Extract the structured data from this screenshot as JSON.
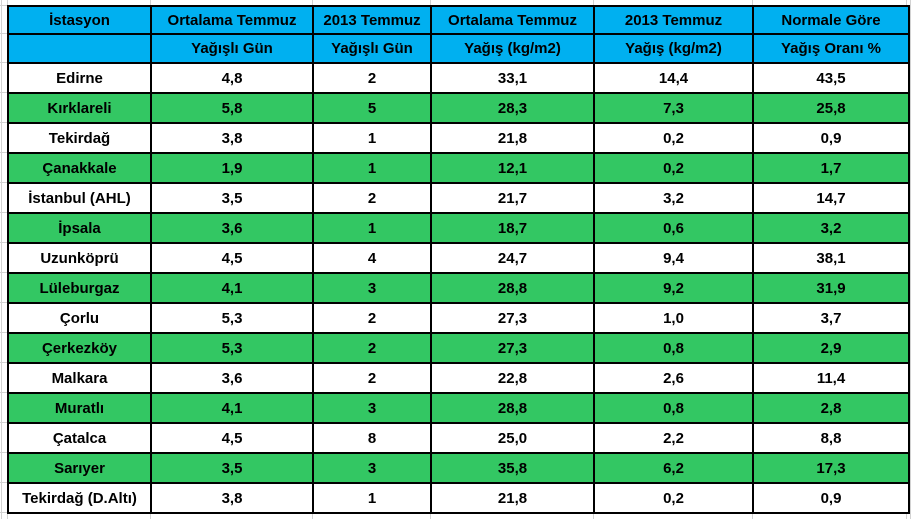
{
  "colors": {
    "header_bg": "#00B0F0",
    "row_green_bg": "#33C763",
    "row_white_bg": "#FFFFFF",
    "grid_border": "#000000",
    "sheet_gridline": "#D2D2D2",
    "text": "#000000"
  },
  "table": {
    "headers": [
      {
        "line1": "İstasyon",
        "line2": ""
      },
      {
        "line1": "Ortalama Temmuz",
        "line2": "Yağışlı Gün"
      },
      {
        "line1": "2013 Temmuz",
        "line2": "Yağışlı Gün"
      },
      {
        "line1": "Ortalama Temmuz",
        "line2": "Yağış (kg/m2)"
      },
      {
        "line1": "2013 Temmuz",
        "line2": "Yağış (kg/m2)"
      },
      {
        "line1": "Normale Göre",
        "line2": "Yağış Oranı %"
      }
    ],
    "rows": [
      {
        "station": "Edirne",
        "values": [
          "4,8",
          "2",
          "33,1",
          "14,4",
          "43,5"
        ]
      },
      {
        "station": "Kırklareli",
        "values": [
          "5,8",
          "5",
          "28,3",
          "7,3",
          "25,8"
        ]
      },
      {
        "station": "Tekirdağ",
        "values": [
          "3,8",
          "1",
          "21,8",
          "0,2",
          "0,9"
        ]
      },
      {
        "station": "Çanakkale",
        "values": [
          "1,9",
          "1",
          "12,1",
          "0,2",
          "1,7"
        ]
      },
      {
        "station": "İstanbul (AHL)",
        "values": [
          "3,5",
          "2",
          "21,7",
          "3,2",
          "14,7"
        ]
      },
      {
        "station": "İpsala",
        "values": [
          "3,6",
          "1",
          "18,7",
          "0,6",
          "3,2"
        ]
      },
      {
        "station": "Uzunköprü",
        "values": [
          "4,5",
          "4",
          "24,7",
          "9,4",
          "38,1"
        ]
      },
      {
        "station": "Lüleburgaz",
        "values": [
          "4,1",
          "3",
          "28,8",
          "9,2",
          "31,9"
        ]
      },
      {
        "station": "Çorlu",
        "values": [
          "5,3",
          "2",
          "27,3",
          "1,0",
          "3,7"
        ]
      },
      {
        "station": "Çerkezköy",
        "values": [
          "5,3",
          "2",
          "27,3",
          "0,8",
          "2,9"
        ]
      },
      {
        "station": "Malkara",
        "values": [
          "3,6",
          "2",
          "22,8",
          "2,6",
          "11,4"
        ]
      },
      {
        "station": "Muratlı",
        "values": [
          "4,1",
          "3",
          "28,8",
          "0,8",
          "2,8"
        ]
      },
      {
        "station": "Çatalca",
        "values": [
          "4,5",
          "8",
          "25,0",
          "2,2",
          "8,8"
        ]
      },
      {
        "station": "Sarıyer",
        "values": [
          "3,5",
          "3",
          "35,8",
          "6,2",
          "17,3"
        ]
      },
      {
        "station": "Tekirdağ (D.Altı)",
        "values": [
          "3,8",
          "1",
          "21,8",
          "0,2",
          "0,9"
        ]
      }
    ]
  },
  "chart_data": {
    "type": "table",
    "columns": [
      "İstasyon",
      "Ortalama Temmuz Yağışlı Gün",
      "2013 Temmuz Yağışlı Gün",
      "Ortalama Temmuz Yağış (kg/m2)",
      "2013 Temmuz Yağış (kg/m2)",
      "Normale Göre Yağış Oranı %"
    ],
    "rows": [
      [
        "Edirne",
        4.8,
        2,
        33.1,
        14.4,
        43.5
      ],
      [
        "Kırklareli",
        5.8,
        5,
        28.3,
        7.3,
        25.8
      ],
      [
        "Tekirdağ",
        3.8,
        1,
        21.8,
        0.2,
        0.9
      ],
      [
        "Çanakkale",
        1.9,
        1,
        12.1,
        0.2,
        1.7
      ],
      [
        "İstanbul (AHL)",
        3.5,
        2,
        21.7,
        3.2,
        14.7
      ],
      [
        "İpsala",
        3.6,
        1,
        18.7,
        0.6,
        3.2
      ],
      [
        "Uzunköprü",
        4.5,
        4,
        24.7,
        9.4,
        38.1
      ],
      [
        "Lüleburgaz",
        4.1,
        3,
        28.8,
        9.2,
        31.9
      ],
      [
        "Çorlu",
        5.3,
        2,
        27.3,
        1.0,
        3.7
      ],
      [
        "Çerkezköy",
        5.3,
        2,
        27.3,
        0.8,
        2.9
      ],
      [
        "Malkara",
        3.6,
        2,
        22.8,
        2.6,
        11.4
      ],
      [
        "Muratlı",
        4.1,
        3,
        28.8,
        0.8,
        2.8
      ],
      [
        "Çatalca",
        4.5,
        8,
        25.0,
        2.2,
        8.8
      ],
      [
        "Sarıyer",
        3.5,
        3,
        35.8,
        6.2,
        17.3
      ],
      [
        "Tekirdağ (D.Altı)",
        3.8,
        1,
        21.8,
        0.2,
        0.9
      ]
    ],
    "layout": {
      "header_lines": 2,
      "row_striping": "alternating white / green starting white",
      "decimal_separator": ",",
      "all_text_bold": true,
      "text_align": "center"
    }
  }
}
